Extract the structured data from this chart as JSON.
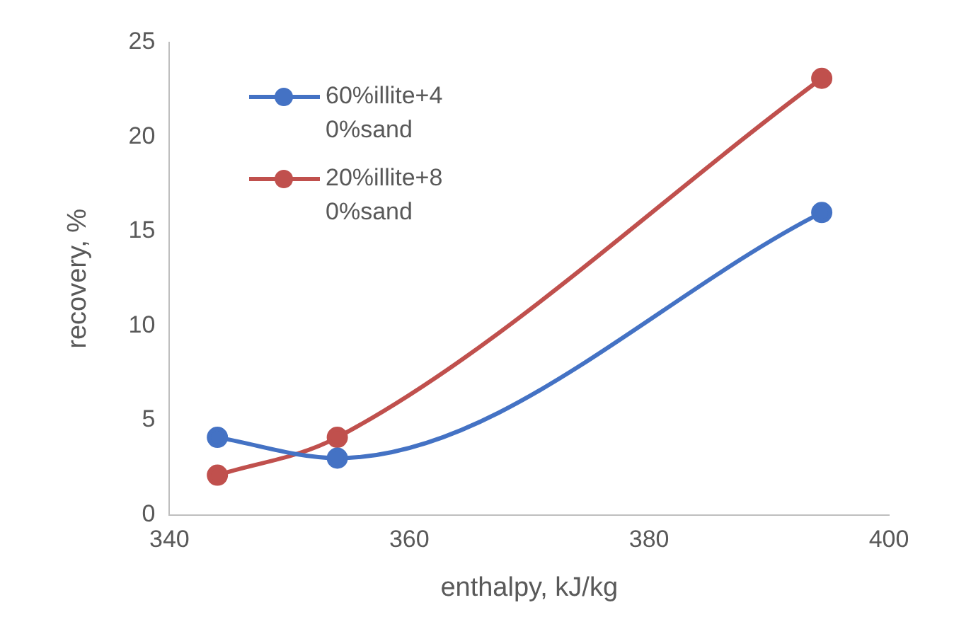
{
  "chart_data": {
    "type": "line",
    "xlabel": "enthalpy, kJ/kg",
    "ylabel": "recovery, %",
    "xlim": [
      340,
      400
    ],
    "xticks": [
      340,
      360,
      380,
      400
    ],
    "ylim": [
      0,
      25
    ],
    "yticks": [
      0,
      5,
      10,
      15,
      20,
      25
    ],
    "grid": false,
    "legend": "top left",
    "marker": "circle",
    "line_style": "solid",
    "series": [
      {
        "name": "60%illite+40%sand",
        "color": "#4472c4",
        "x": [
          344,
          354,
          394.4
        ],
        "values": [
          4.1,
          3,
          16
        ]
      },
      {
        "name": "20%illite+80%sand",
        "color": "#c0504d",
        "x": [
          344,
          354,
          394.4
        ],
        "values": [
          2.1,
          4.1,
          23.1
        ]
      }
    ]
  }
}
